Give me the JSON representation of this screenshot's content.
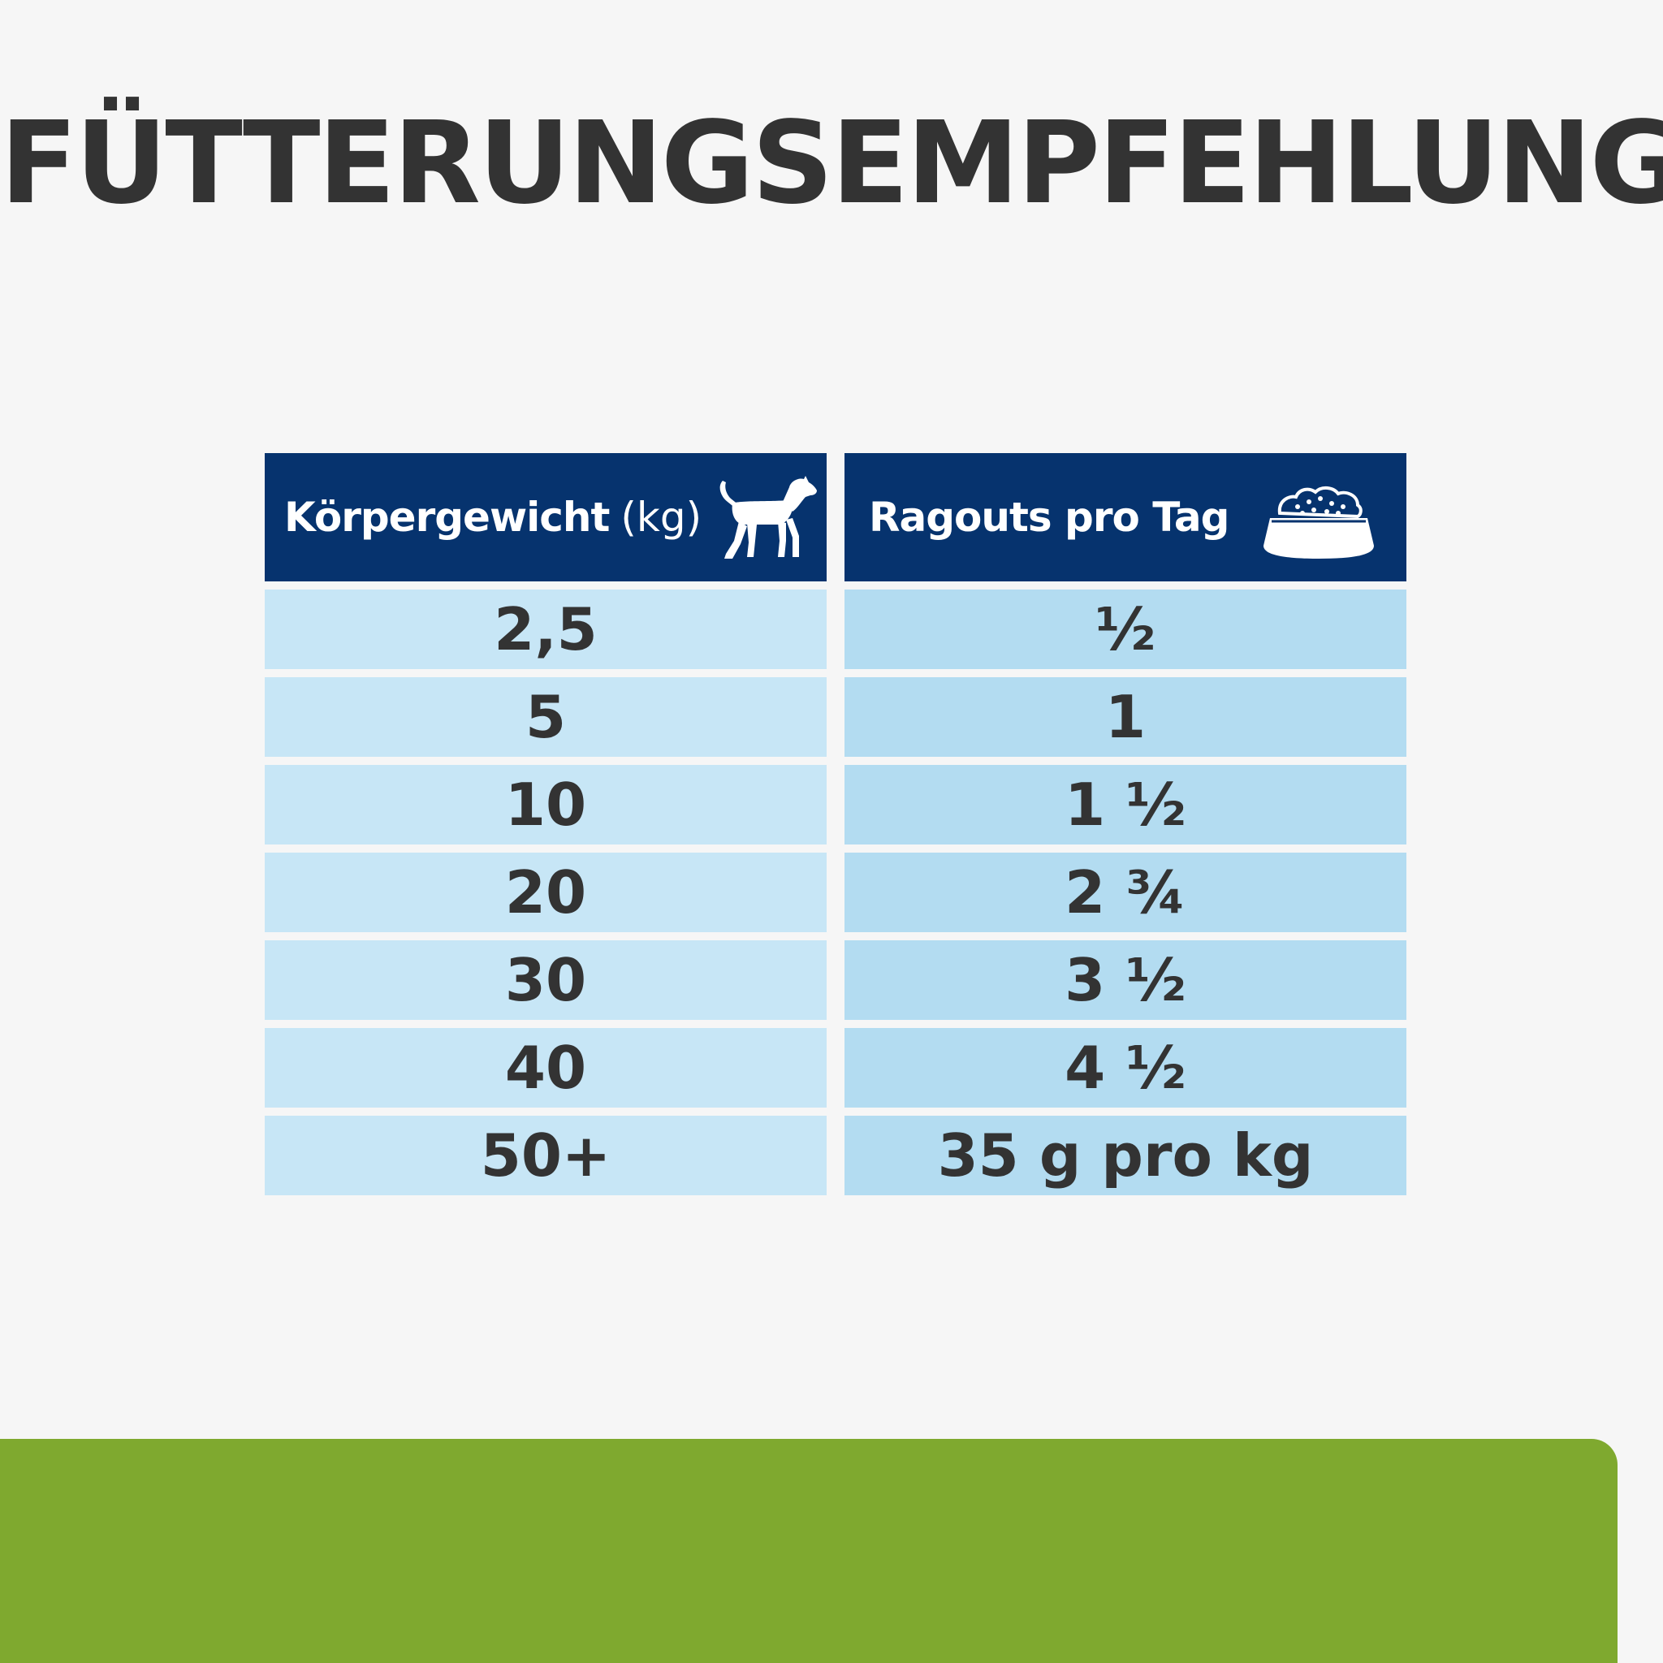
{
  "title": "FÜTTERUNGSEMPFEHLUNG",
  "table": {
    "header": {
      "weight_label": "Körpergewicht",
      "weight_unit": "(kg)",
      "weight_icon": "dog-icon",
      "portion_label": "Ragouts pro Tag",
      "portion_icon": "food-bowl-icon"
    },
    "rows": [
      {
        "weight": "2,5",
        "portion": "½"
      },
      {
        "weight": "5",
        "portion": "1"
      },
      {
        "weight": "10",
        "portion": "1 ½"
      },
      {
        "weight": "20",
        "portion": "2 ¾"
      },
      {
        "weight": "30",
        "portion": "3 ½"
      },
      {
        "weight": "40",
        "portion": "4 ½"
      },
      {
        "weight": "50+",
        "portion": "35 g pro kg"
      }
    ]
  },
  "colors": {
    "header_bg": "#06336e",
    "left_cell_bg": "#c7e6f6",
    "right_cell_bg": "#b3dcf1",
    "band": "#7fa92f",
    "text": "#333333"
  }
}
